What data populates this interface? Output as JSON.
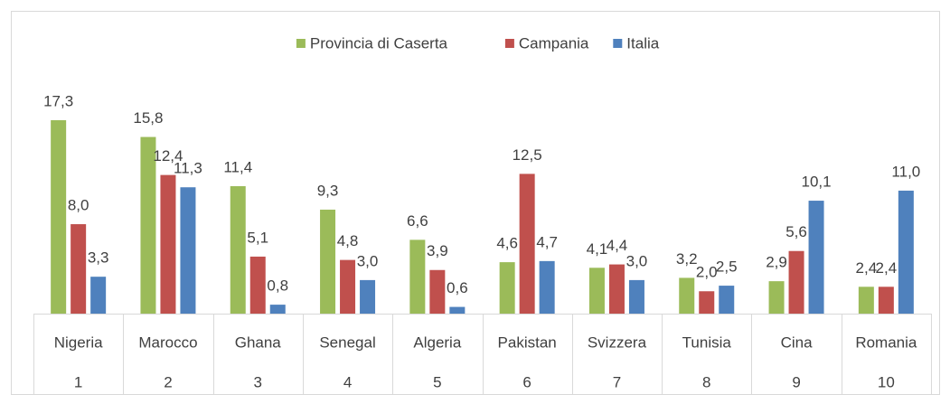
{
  "chart_data": {
    "type": "bar",
    "legend": "top",
    "categories": [
      "Nigeria",
      "Marocco",
      "Ghana",
      "Senegal",
      "Algeria",
      "Pakistan",
      "Svizzera",
      "Tunisia",
      "Cina",
      "Romania"
    ],
    "ranks": [
      1,
      2,
      3,
      4,
      5,
      6,
      7,
      8,
      9,
      10
    ],
    "series": [
      {
        "name": "Provincia di Caserta",
        "color": "#9bbb59",
        "values": [
          17.3,
          15.8,
          11.4,
          9.3,
          6.6,
          4.6,
          4.1,
          3.2,
          2.9,
          2.4
        ],
        "value_labels": [
          "17,3",
          "15,8",
          "11,4",
          "9,3",
          "6,6",
          "4,6",
          "4,1",
          "3,2",
          "2,9",
          "2,4"
        ]
      },
      {
        "name": "Campania",
        "color": "#c0504d",
        "values": [
          8.0,
          12.4,
          5.1,
          4.8,
          3.9,
          12.5,
          4.4,
          2.0,
          5.6,
          2.4
        ],
        "value_labels": [
          "8,0",
          "12,4",
          "5,1",
          "4,8",
          "3,9",
          "12,5",
          "4,4",
          "2,0",
          "5,6",
          "2,4"
        ]
      },
      {
        "name": "Italia",
        "color": "#4f81bd",
        "values": [
          3.3,
          11.3,
          0.8,
          3.0,
          0.6,
          4.7,
          3.0,
          2.5,
          10.1,
          11.0
        ],
        "value_labels": [
          "3,3",
          "11,3",
          "0,8",
          "3,0",
          "0,6",
          "4,7",
          "3,0",
          "2,5",
          "10,1",
          "11,0"
        ]
      }
    ]
  }
}
